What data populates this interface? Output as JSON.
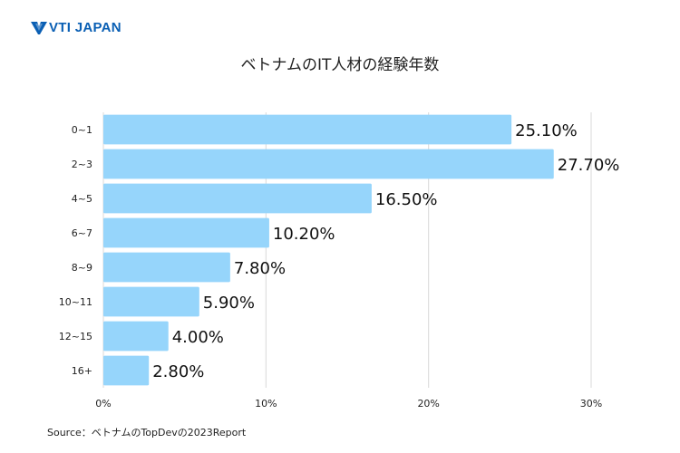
{
  "brand": {
    "name": "VTI JAPAN",
    "color": "#0a5fb4"
  },
  "source_note": "Source：ベトナムのTopDevの2023Report",
  "chart_data": {
    "type": "bar",
    "orientation": "horizontal",
    "title": "ベトナムのIT人材の経験年数",
    "categories": [
      "0~1",
      "2~3",
      "4~5",
      "6~7",
      "8~9",
      "10~11",
      "12~15",
      "16+"
    ],
    "values": [
      25.1,
      27.7,
      16.5,
      10.2,
      7.8,
      5.9,
      4.0,
      2.8
    ],
    "value_labels": [
      "25.10%",
      "27.70%",
      "16.50%",
      "10.20%",
      "7.80%",
      "5.90%",
      "4.00%",
      "2.80%"
    ],
    "xlim": [
      0,
      30
    ],
    "x_ticks": [
      0,
      10,
      20,
      30
    ],
    "x_tick_labels": [
      "0%",
      "10%",
      "20%",
      "30%"
    ],
    "xlabel": "",
    "ylabel": "",
    "grid": true,
    "bar_color": "#96d5fb",
    "grid_color": "#d9d9d9"
  }
}
